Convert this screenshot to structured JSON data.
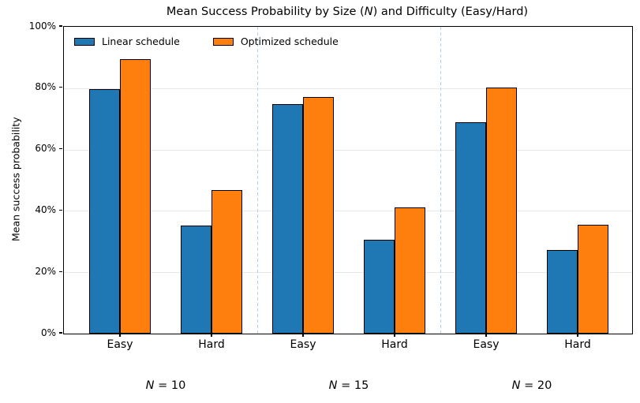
{
  "title_parts": {
    "pre": "Mean Success Probability by Size (",
    "italic_var": "N",
    "post": ") and Difficulty (Easy/Hard)"
  },
  "group_label_parts": [
    {
      "italic": "N",
      "rest": " = 10"
    },
    {
      "italic": "N",
      "rest": " = 15"
    },
    {
      "italic": "N",
      "rest": " = 20"
    }
  ],
  "colors": {
    "linear": "#1f77b4",
    "optimized": "#ff7f0e",
    "bar_edge": "#000000",
    "gridline": "#e8e8e8",
    "group_separator": "#b3d4e8",
    "text": "#000000"
  },
  "chart_data": {
    "type": "bar",
    "title": "Mean Success Probability by Size (N) and Difficulty (Easy/Hard)",
    "xlabel": "",
    "ylabel": "Mean success probability",
    "ylim": [
      0,
      100
    ],
    "yticks": [
      0,
      20,
      40,
      60,
      80,
      100
    ],
    "ytick_labels": [
      "0%",
      "20%",
      "40%",
      "60%",
      "80%",
      "100%"
    ],
    "grid": "horizontal",
    "legend_position": "upper left",
    "legend_frame": false,
    "groups": [
      "N = 10",
      "N = 15",
      "N = 20"
    ],
    "categories": [
      "Easy",
      "Hard",
      "Easy",
      "Hard",
      "Easy",
      "Hard"
    ],
    "category_group_index": [
      0,
      0,
      1,
      1,
      2,
      2
    ],
    "values_unit": "%",
    "series": [
      {
        "name": "Linear schedule",
        "color": "#1f77b4",
        "values": [
          79.7,
          35.1,
          74.8,
          30.5,
          68.8,
          27.3
        ]
      },
      {
        "name": "Optimized schedule",
        "color": "#ff7f0e",
        "values": [
          89.5,
          46.7,
          77.1,
          41.1,
          80.3,
          35.4
        ]
      }
    ],
    "group_separators": true
  }
}
